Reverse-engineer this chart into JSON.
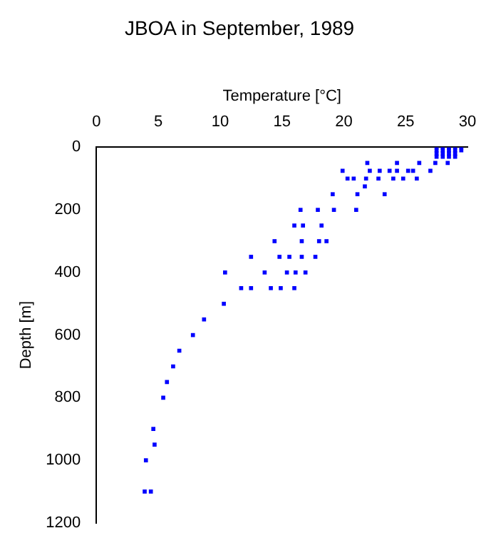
{
  "chart_data": {
    "type": "scatter",
    "title": "JBOA in September, 1989",
    "xlabel": "Temperature [°C]",
    "ylabel": "Depth [m]",
    "x": [
      27.5,
      28.0,
      28.5,
      29.0,
      29.5,
      27.5,
      28.0,
      28.5,
      29.0,
      29.5,
      27.5,
      28.0,
      28.5,
      29.0,
      27.5,
      28.0,
      28.5,
      29.0,
      21.9,
      24.3,
      26.1,
      27.4,
      28.4,
      19.9,
      22.1,
      22.9,
      23.7,
      24.3,
      25.2,
      25.6,
      27.0,
      20.3,
      20.8,
      21.8,
      22.8,
      24.0,
      24.8,
      25.9,
      21.7,
      19.1,
      21.1,
      23.3,
      16.5,
      17.9,
      19.2,
      21.0,
      16.0,
      16.7,
      18.2,
      14.4,
      16.6,
      18.0,
      18.6,
      12.5,
      14.8,
      15.6,
      16.6,
      17.7,
      10.4,
      13.6,
      15.4,
      16.1,
      16.9,
      11.7,
      12.5,
      14.1,
      14.9,
      16.0,
      10.3,
      8.7,
      7.8,
      6.7,
      6.2,
      5.7,
      5.4,
      4.6,
      4.7,
      4.0,
      3.9,
      4.4
    ],
    "values": [
      0,
      0,
      0,
      0,
      0,
      10,
      10,
      10,
      10,
      10,
      20,
      20,
      20,
      20,
      30,
      30,
      30,
      30,
      50,
      50,
      50,
      50,
      50,
      75,
      75,
      75,
      75,
      75,
      75,
      75,
      75,
      100,
      100,
      100,
      100,
      100,
      100,
      100,
      125,
      150,
      150,
      150,
      200,
      200,
      200,
      200,
      250,
      250,
      250,
      300,
      300,
      300,
      300,
      350,
      350,
      350,
      350,
      350,
      400,
      400,
      400,
      400,
      400,
      450,
      450,
      450,
      450,
      450,
      500,
      550,
      600,
      650,
      700,
      750,
      800,
      900,
      950,
      1000,
      1100,
      1100
    ],
    "color": "#0000ff",
    "marker": "square",
    "grid": false,
    "legend": false,
    "xlim": [
      0,
      30
    ],
    "xticks": [
      0,
      5,
      10,
      15,
      20,
      25,
      30
    ],
    "ylim": [
      1200,
      0
    ],
    "yticks": [
      0,
      200,
      400,
      600,
      800,
      1000,
      1200
    ]
  }
}
